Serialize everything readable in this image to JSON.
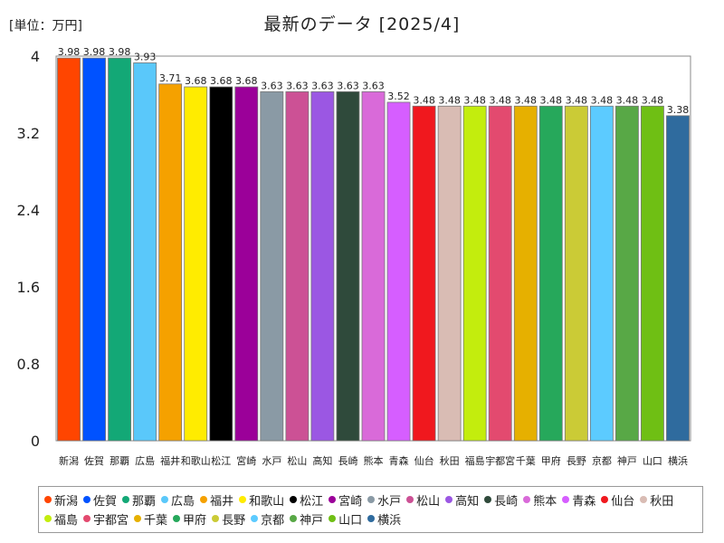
{
  "header": {
    "unit_label": "[単位：万円]",
    "title": "最新のデータ [2025/4]"
  },
  "chart_data": {
    "type": "bar",
    "title": "最新のデータ [2025/4]",
    "ylabel": "[単位：万円]",
    "ylim": [
      0,
      4
    ],
    "yticks": [
      "0",
      "0.8",
      "1.6",
      "2.4",
      "3.2",
      "4"
    ],
    "grid": false,
    "legend_position": "bottom",
    "categories": [
      "新潟",
      "佐賀",
      "那覇",
      "広島",
      "福井",
      "和歌山",
      "松江",
      "宮崎",
      "水戸",
      "松山",
      "高知",
      "長崎",
      "熊本",
      "青森",
      "仙台",
      "秋田",
      "福島",
      "宇都宮",
      "千葉",
      "甲府",
      "長野",
      "京都",
      "神戸",
      "山口",
      "横浜"
    ],
    "x_tick_labels": [
      "新潟",
      "佐賀",
      "那覇",
      "広島",
      "福井",
      "和歌山",
      "松江",
      "宮崎",
      "水戸",
      "松山",
      "高知",
      "長崎",
      "熊本",
      "青森",
      "仙台",
      "秋田",
      "福島",
      "宇都宮",
      "千葉",
      "甲府",
      "長野",
      "京都",
      "神戸",
      "山口",
      "横浜"
    ],
    "values": [
      3.98,
      3.98,
      3.98,
      3.93,
      3.71,
      3.68,
      3.68,
      3.68,
      3.63,
      3.63,
      3.63,
      3.63,
      3.63,
      3.52,
      3.48,
      3.48,
      3.48,
      3.48,
      3.48,
      3.48,
      3.48,
      3.48,
      3.48,
      3.48,
      3.38
    ],
    "data_labels": [
      "3.98",
      "3.98",
      "3.98",
      "3.93",
      "3.71",
      "3.68",
      "3.68",
      "3.68",
      "3.63",
      "3.63",
      "3.63",
      "3.63",
      "3.63",
      "3.52",
      "3.48",
      "3.48",
      "3.48",
      "3.48",
      "3.48",
      "3.48",
      "3.48",
      "3.48",
      "3.48",
      "3.48",
      "3.38"
    ],
    "colors": [
      "#ff4500",
      "#0052ff",
      "#13a876",
      "#5ac8fa",
      "#f5a100",
      "#ffec00",
      "#000000",
      "#9b0099",
      "#8a9aa5",
      "#cc5195",
      "#9b57e3",
      "#2f4a3b",
      "#d96ad9",
      "#d65eff",
      "#f0181e",
      "#d9bcb4",
      "#c3ed0d",
      "#e34a6f",
      "#e6b000",
      "#26a85b",
      "#cbcb36",
      "#5ccbff",
      "#58a846",
      "#6fbf14",
      "#2f6b9e"
    ]
  }
}
